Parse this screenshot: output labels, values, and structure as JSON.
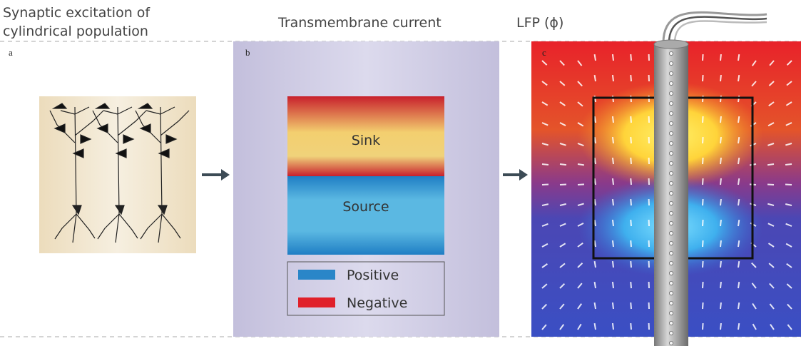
{
  "panel_a": {
    "heading": [
      "Synaptic excitation of",
      "cylindrical population"
    ],
    "label": "a"
  },
  "panel_b": {
    "heading": "Transmembrane current",
    "label": "b",
    "sink": "Sink",
    "source": "Source",
    "legend": [
      "Positive",
      "Negative"
    ]
  },
  "panel_c": {
    "heading": "LFP (ϕ)",
    "label": "c"
  }
}
